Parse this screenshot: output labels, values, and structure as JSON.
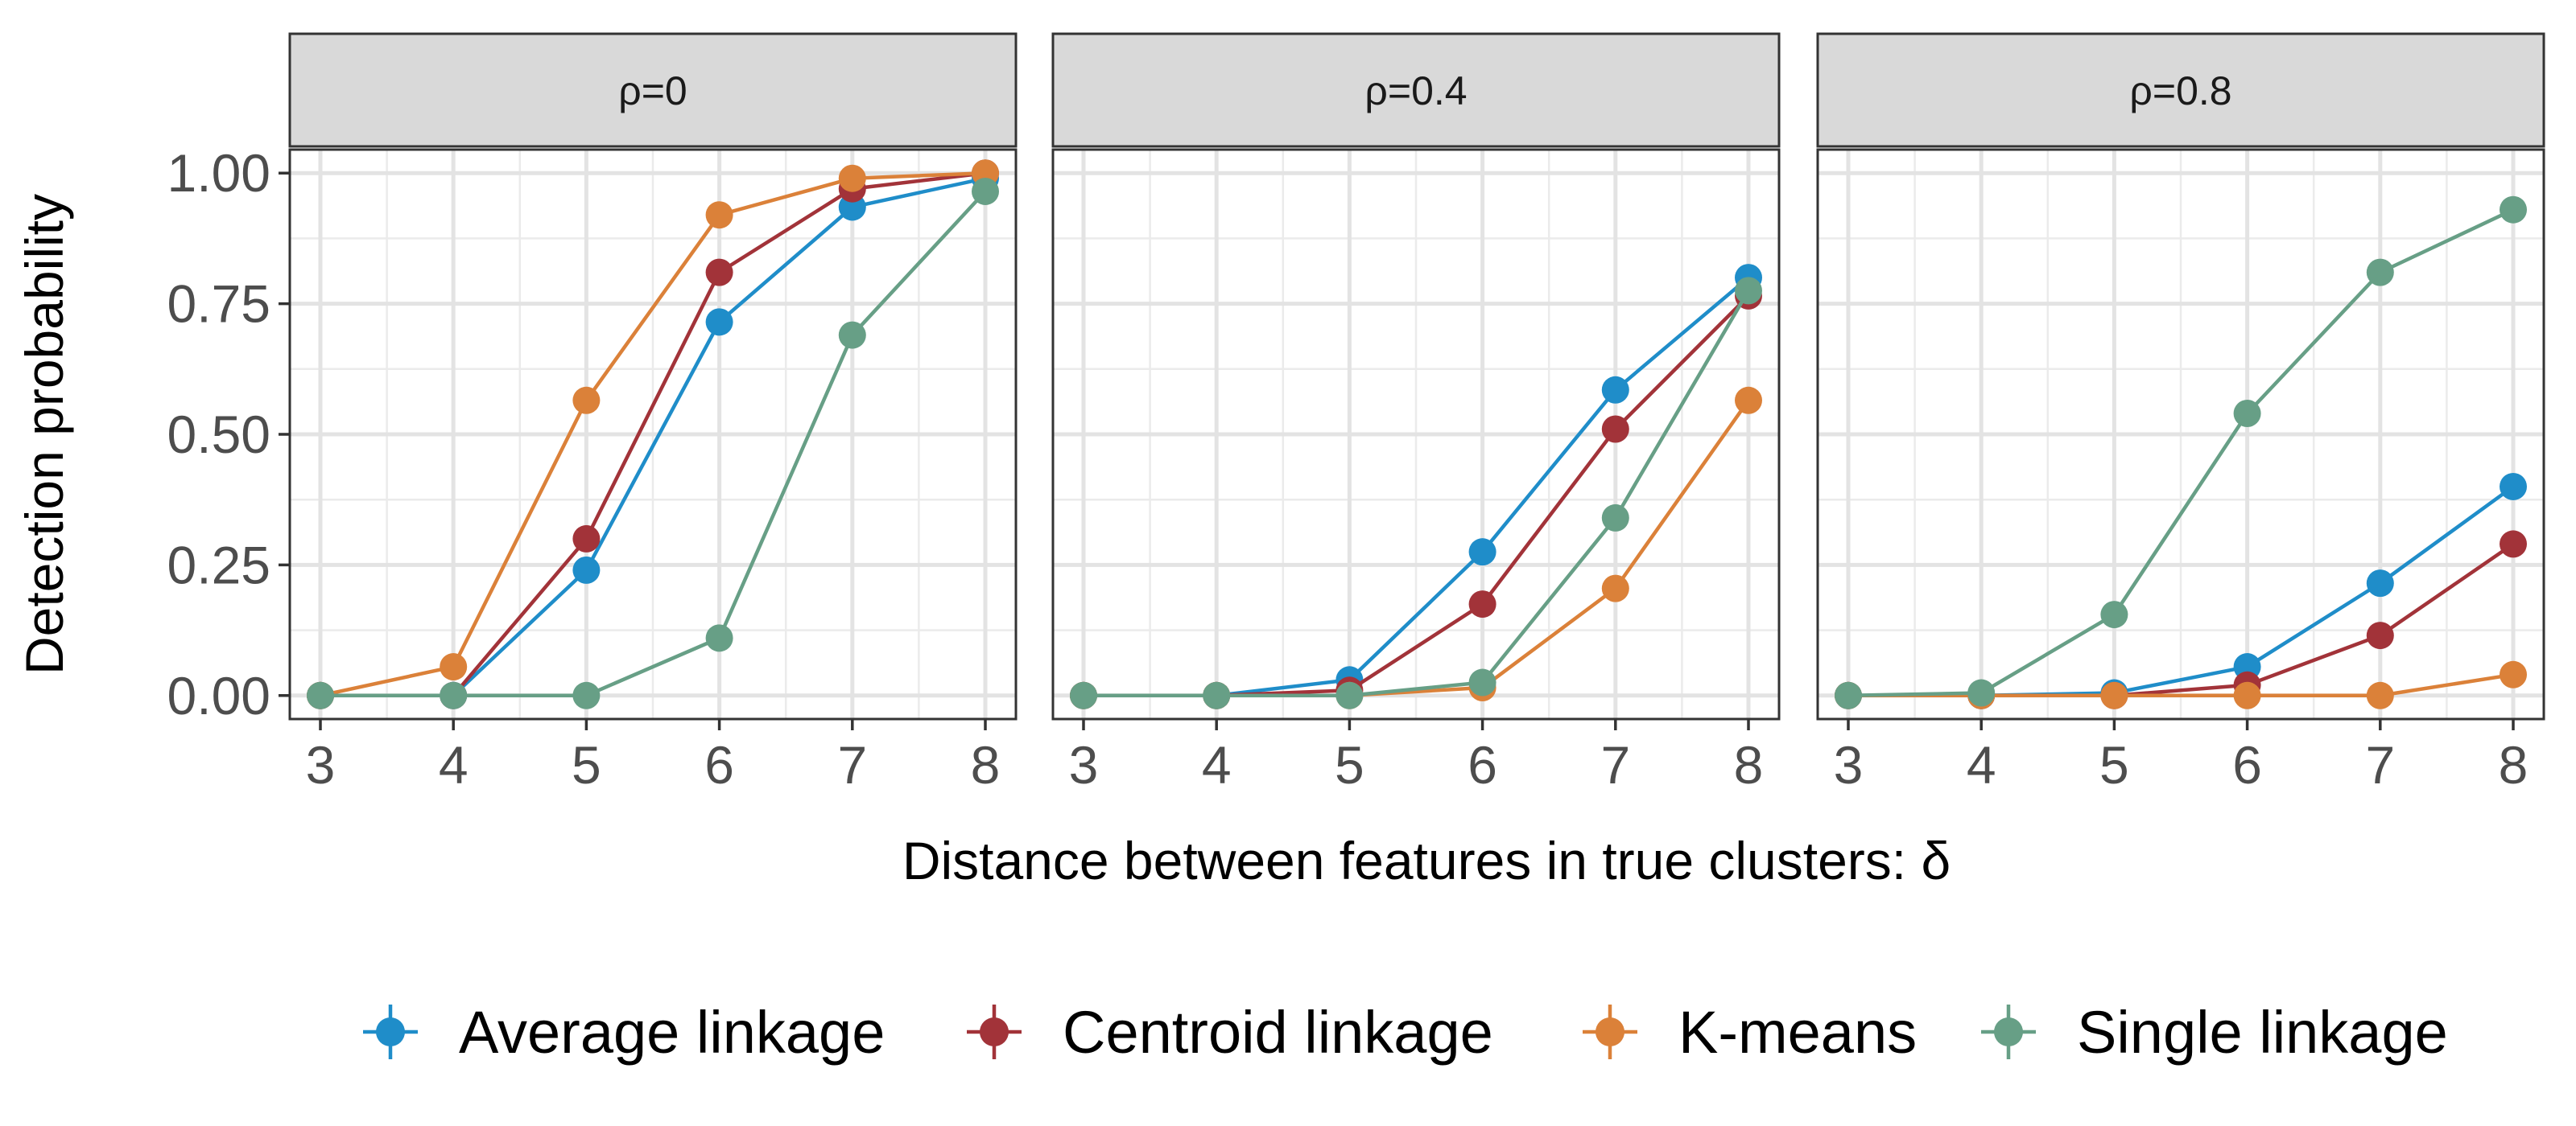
{
  "chart_data": {
    "type": "line",
    "xlabel": "Distance between features in true clusters: δ",
    "ylabel": "Detection probability",
    "x": [
      3,
      4,
      5,
      6,
      7,
      8
    ],
    "xlim": [
      2.77,
      8.23
    ],
    "ylim": [
      -0.045,
      1.045
    ],
    "y_ticks": [
      0,
      0.25,
      0.5,
      0.75,
      1
    ],
    "y_tick_labels": [
      "0.00",
      "0.25",
      "0.50",
      "0.75",
      "1.00"
    ],
    "x_tick_labels": [
      "3",
      "4",
      "5",
      "6",
      "7",
      "8"
    ],
    "grid": true,
    "legend_position": "bottom",
    "legend": [
      "Average linkage",
      "Centroid linkage",
      "K-means",
      "Single linkage"
    ],
    "series_colors": {
      "Average linkage": "#1f8dc9",
      "Centroid linkage": "#a23339",
      "K-means": "#db8139",
      "Single linkage": "#679f86"
    },
    "panels": [
      {
        "label": "ρ=0",
        "series": [
          {
            "name": "Average linkage",
            "values": [
              0,
              0,
              0.24,
              0.715,
              0.935,
              0.99
            ]
          },
          {
            "name": "Centroid linkage",
            "values": [
              0,
              0,
              0.3,
              0.81,
              0.97,
              1.0
            ]
          },
          {
            "name": "K-means",
            "values": [
              0,
              0.055,
              0.565,
              0.92,
              0.99,
              1.0
            ]
          },
          {
            "name": "Single linkage",
            "values": [
              0,
              0,
              0,
              0.11,
              0.69,
              0.965
            ]
          }
        ]
      },
      {
        "label": "ρ=0.4",
        "series": [
          {
            "name": "Average linkage",
            "values": [
              0,
              0,
              0.03,
              0.275,
              0.585,
              0.8
            ]
          },
          {
            "name": "Centroid linkage",
            "values": [
              0,
              0,
              0.01,
              0.175,
              0.51,
              0.765
            ]
          },
          {
            "name": "K-means",
            "values": [
              0,
              0,
              0,
              0.015,
              0.205,
              0.565
            ]
          },
          {
            "name": "Single linkage",
            "values": [
              0,
              0,
              0,
              0.025,
              0.34,
              0.775
            ]
          }
        ]
      },
      {
        "label": "ρ=0.8",
        "series": [
          {
            "name": "Average linkage",
            "values": [
              0,
              0,
              0.005,
              0.055,
              0.215,
              0.4
            ]
          },
          {
            "name": "Centroid linkage",
            "values": [
              0,
              0,
              0,
              0.02,
              0.115,
              0.29
            ]
          },
          {
            "name": "K-means",
            "values": [
              0,
              0,
              0,
              0,
              0,
              0.04
            ]
          },
          {
            "name": "Single linkage",
            "values": [
              0,
              0.005,
              0.155,
              0.54,
              0.81,
              0.93
            ]
          }
        ]
      }
    ]
  }
}
